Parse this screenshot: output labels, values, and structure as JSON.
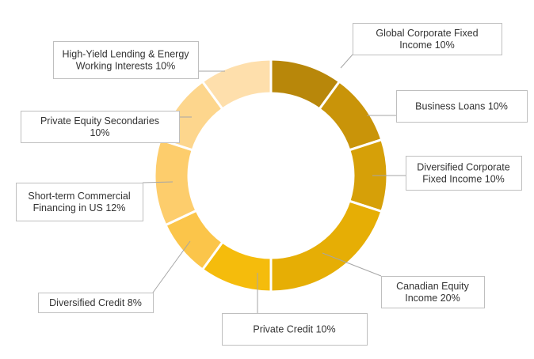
{
  "chart_data": {
    "type": "pie",
    "donut": true,
    "title": "",
    "slices": [
      {
        "label": "Global Corporate Fixed Income 10%",
        "lines": [
          "Global Corporate Fixed",
          "Income 10%"
        ],
        "value": 10,
        "color": "#b8870a"
      },
      {
        "label": "Business Loans 10%",
        "lines": [
          "Business Loans 10%"
        ],
        "value": 10,
        "color": "#c99409"
      },
      {
        "label": "Diversified Corporate Fixed Income 10%",
        "lines": [
          "Diversified Corporate",
          "Fixed Income 10%"
        ],
        "value": 10,
        "color": "#d6a008"
      },
      {
        "label": "Canadian Equity Income 20%",
        "lines": [
          "Canadian Equity",
          "Income 20%"
        ],
        "value": 20,
        "color": "#e6ae05"
      },
      {
        "label": "Private Credit 10%",
        "lines": [
          "Private Credit 10%"
        ],
        "value": 10,
        "color": "#f5bc0c"
      },
      {
        "label": "Diversified Credit 8%",
        "lines": [
          "Diversified Credit 8%"
        ],
        "value": 8,
        "color": "#fbc54a"
      },
      {
        "label": "Short-term Commercial Financing in US 12%",
        "lines": [
          "Short-term Commercial",
          "Financing in US 12%"
        ],
        "value": 12,
        "color": "#fdcd6c"
      },
      {
        "label": "Private Equity Secondaries 10%",
        "lines": [
          "Private Equity Secondaries",
          "10%"
        ],
        "value": 10,
        "color": "#fdd68d"
      },
      {
        "label": "High-Yield Lending & Energy Working Interests 10%",
        "lines": [
          "High-Yield Lending & Energy",
          "Working Interests 10%"
        ],
        "value": 10,
        "color": "#fedfac"
      }
    ]
  }
}
